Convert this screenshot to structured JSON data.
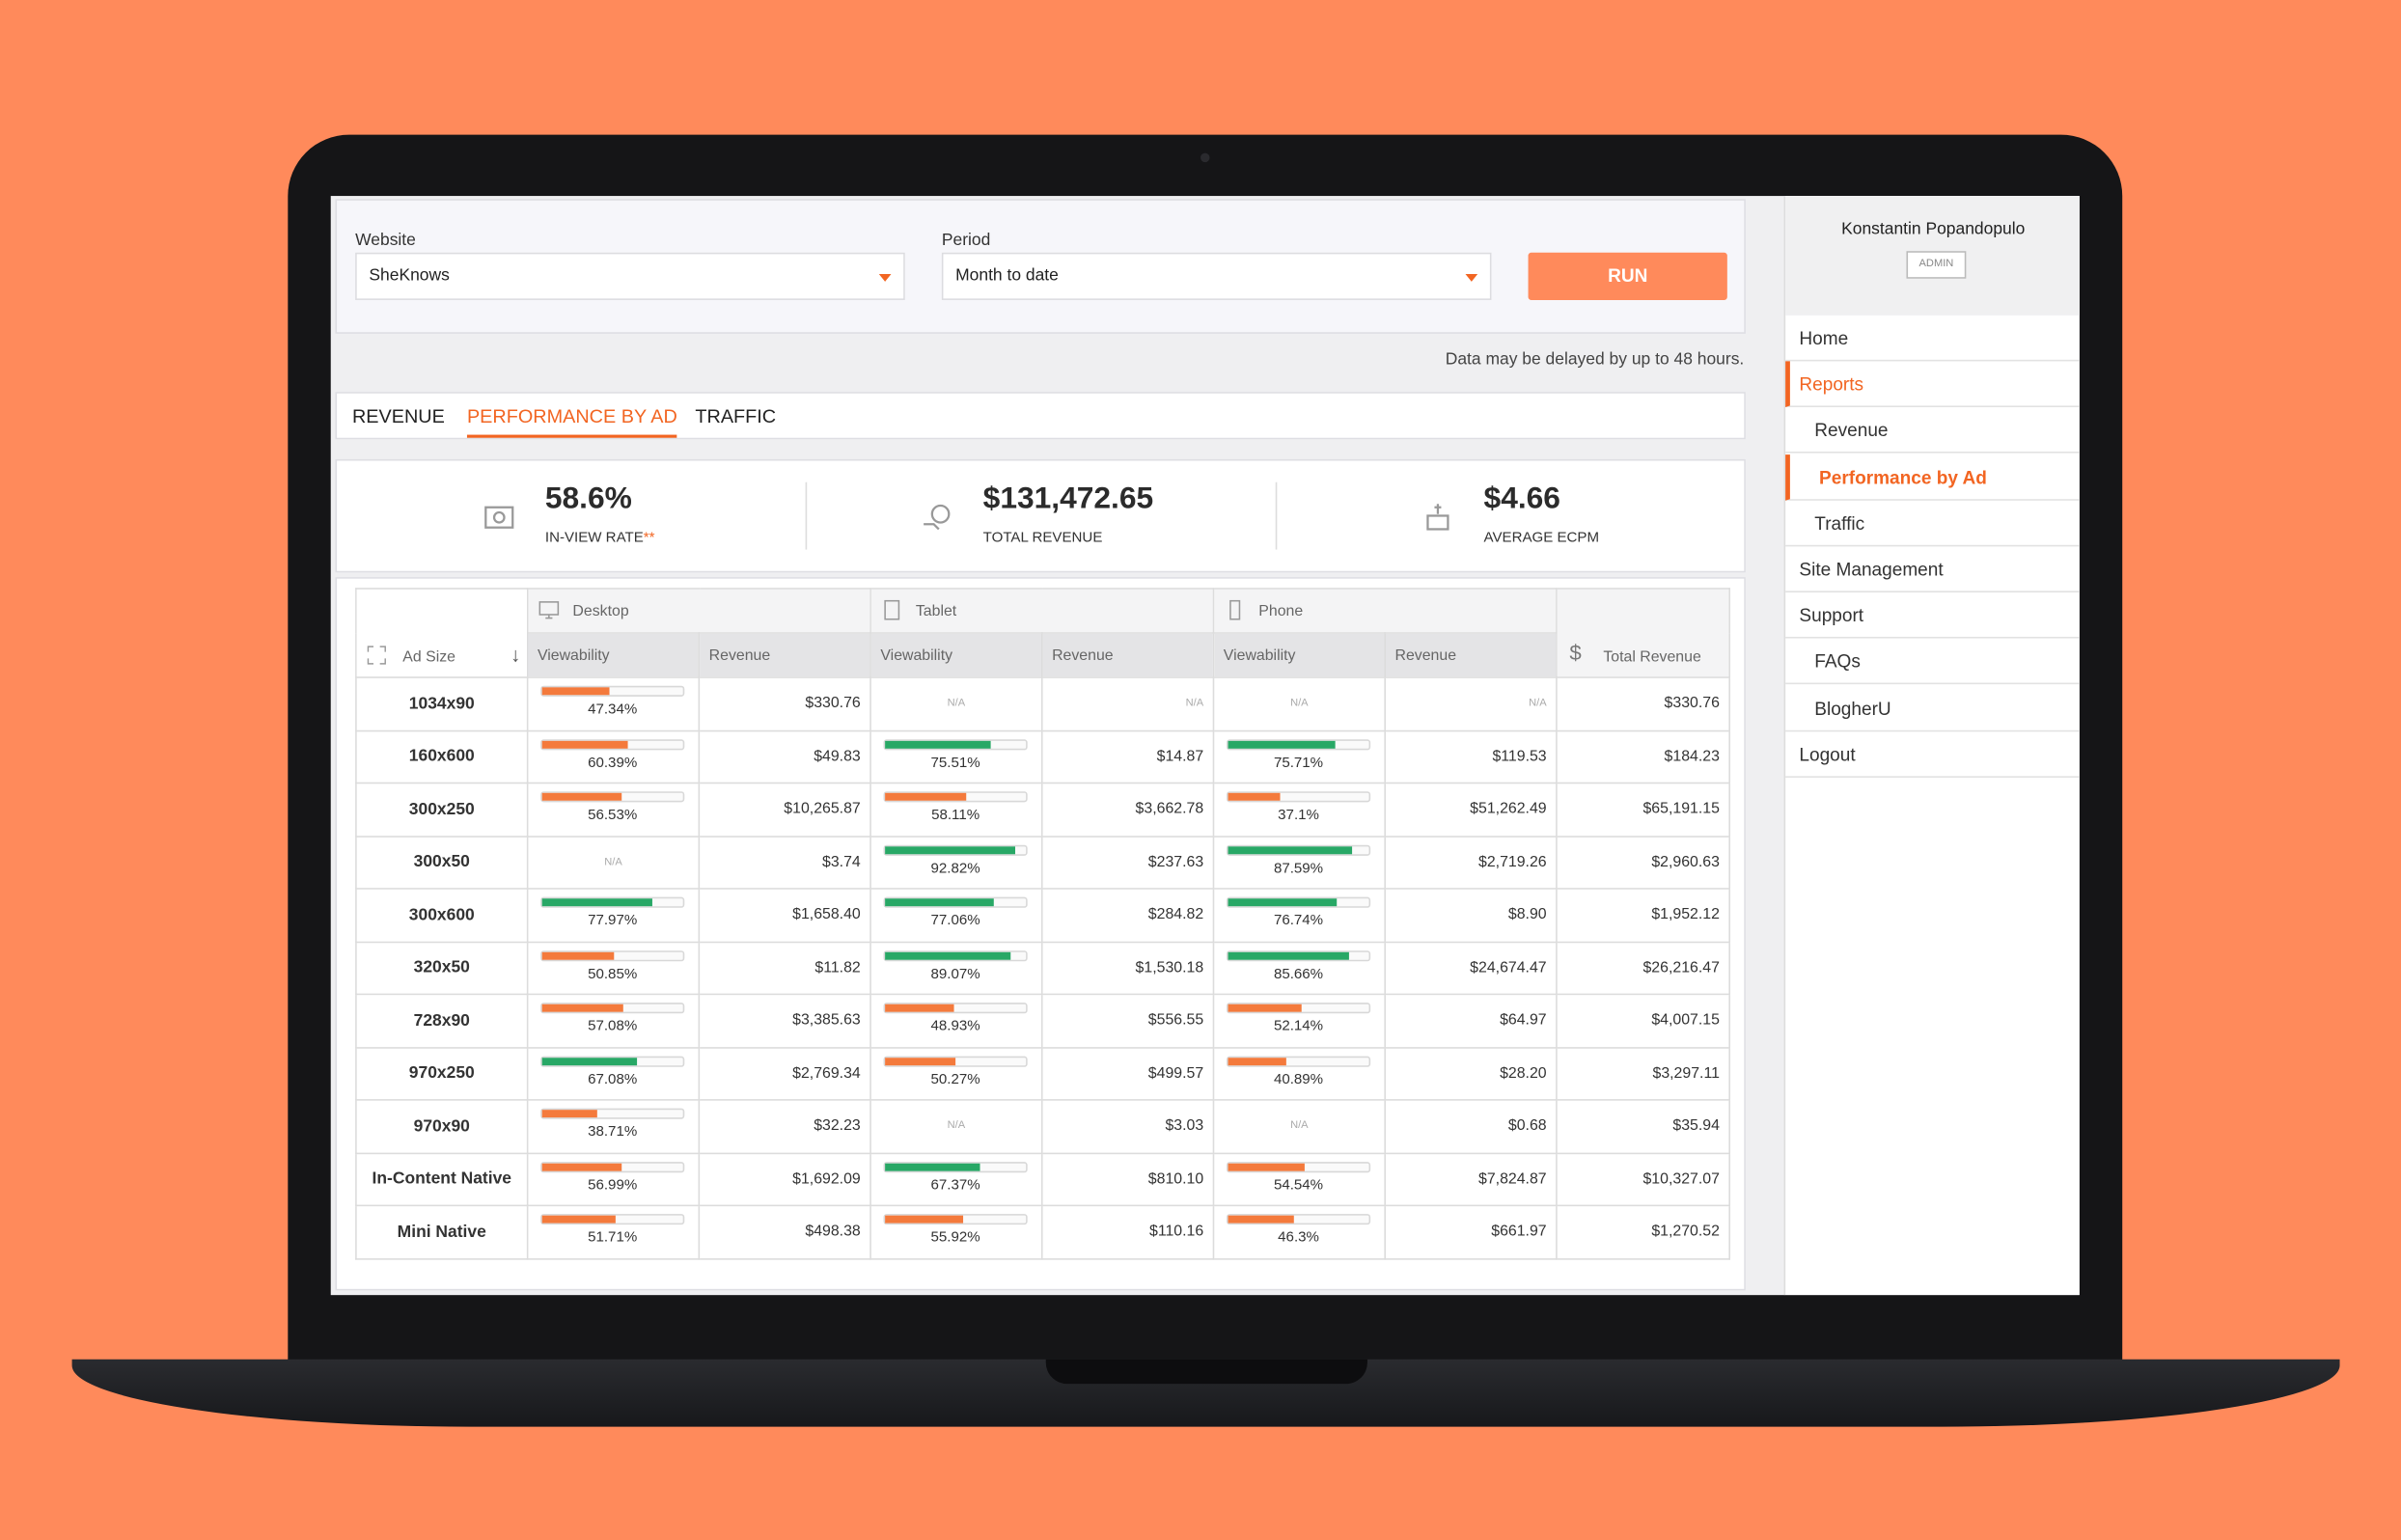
{
  "filters": {
    "website_label": "Website",
    "website": "SheKnows",
    "period_label": "Period",
    "period": "Month to date",
    "button": "RUN"
  },
  "notice": "Data may be delayed by up to 48 hours.",
  "tabs": [
    "REVENUE",
    "PERFORMANCE BY AD",
    "TRAFFIC"
  ],
  "active_tab": 1,
  "kpis": [
    {
      "value": "58.6%",
      "label": "IN-VIEW RATE",
      "note": "**"
    },
    {
      "value": "$131,472.65",
      "label": "TOTAL REVENUE"
    },
    {
      "value": "$4.66",
      "label": "AVERAGE ECPM"
    }
  ],
  "table": {
    "groups": [
      "Desktop",
      "Tablet",
      "Phone"
    ],
    "columns": {
      "size": "Ad Size",
      "viewability": "Viewability",
      "revenue": "Revenue",
      "total": "Total Revenue"
    },
    "rows": [
      [
        "1034x90",
        {
          "value": 47.34,
          "label": "47.34%",
          "color": "#f47a3c"
        },
        "$330.76",
        "N/A",
        "N/A",
        "N/A",
        "N/A",
        "$330.76"
      ],
      [
        "160x600",
        {
          "value": 60.39,
          "label": "60.39%",
          "color": "#f47a3c"
        },
        "$49.83",
        {
          "value": 75.51,
          "label": "75.51%",
          "color": "#28a866"
        },
        "$14.87",
        {
          "value": 75.71,
          "label": "75.71%",
          "color": "#28a866"
        },
        "$119.53",
        "$184.23"
      ],
      [
        "300x250",
        {
          "value": 56.53,
          "label": "56.53%",
          "color": "#f47a3c"
        },
        "$10,265.87",
        {
          "value": 58.11,
          "label": "58.11%",
          "color": "#f47a3c"
        },
        "$3,662.78",
        {
          "value": 37.1,
          "label": "37.1%",
          "color": "#f47a3c"
        },
        "$51,262.49",
        "$65,191.15"
      ],
      [
        "300x50",
        "N/A",
        "$3.74",
        {
          "value": 92.82,
          "label": "92.82%",
          "color": "#28a866"
        },
        "$237.63",
        {
          "value": 87.59,
          "label": "87.59%",
          "color": "#28a866"
        },
        "$2,719.26",
        "$2,960.63"
      ],
      [
        "300x600",
        {
          "value": 77.97,
          "label": "77.97%",
          "color": "#28a866"
        },
        "$1,658.40",
        {
          "value": 77.06,
          "label": "77.06%",
          "color": "#28a866"
        },
        "$284.82",
        {
          "value": 76.74,
          "label": "76.74%",
          "color": "#28a866"
        },
        "$8.90",
        "$1,952.12"
      ],
      [
        "320x50",
        {
          "value": 50.85,
          "label": "50.85%",
          "color": "#f47a3c"
        },
        "$11.82",
        {
          "value": 89.07,
          "label": "89.07%",
          "color": "#28a866"
        },
        "$1,530.18",
        {
          "value": 85.66,
          "label": "85.66%",
          "color": "#28a866"
        },
        "$24,674.47",
        "$26,216.47"
      ],
      [
        "728x90",
        {
          "value": 57.08,
          "label": "57.08%",
          "color": "#f47a3c"
        },
        "$3,385.63",
        {
          "value": 48.93,
          "label": "48.93%",
          "color": "#f47a3c"
        },
        "$556.55",
        {
          "value": 52.14,
          "label": "52.14%",
          "color": "#f47a3c"
        },
        "$64.97",
        "$4,007.15"
      ],
      [
        "970x250",
        {
          "value": 67.08,
          "label": "67.08%",
          "color": "#28a866"
        },
        "$2,769.34",
        {
          "value": 50.27,
          "label": "50.27%",
          "color": "#f47a3c"
        },
        "$499.57",
        {
          "value": 40.89,
          "label": "40.89%",
          "color": "#f47a3c"
        },
        "$28.20",
        "$3,297.11"
      ],
      [
        "970x90",
        {
          "value": 38.71,
          "label": "38.71%",
          "color": "#f47a3c"
        },
        "$32.23",
        "N/A",
        "$3.03",
        "N/A",
        "$0.68",
        "$35.94"
      ],
      [
        "In-Content Native",
        {
          "value": 56.99,
          "label": "56.99%",
          "color": "#f47a3c"
        },
        "$1,692.09",
        {
          "value": 67.37,
          "label": "67.37%",
          "color": "#28a866"
        },
        "$810.10",
        {
          "value": 54.54,
          "label": "54.54%",
          "color": "#f47a3c"
        },
        "$7,824.87",
        "$10,327.07"
      ],
      [
        "Mini Native",
        {
          "value": 51.71,
          "label": "51.71%",
          "color": "#f47a3c"
        },
        "$498.38",
        {
          "value": 55.92,
          "label": "55.92%",
          "color": "#f47a3c"
        },
        "$110.16",
        {
          "value": 46.3,
          "label": "46.3%",
          "color": "#f47a3c"
        },
        "$661.97",
        "$1,270.52"
      ]
    ]
  },
  "sidebar": {
    "user": "Konstantin Popandopulo",
    "role": "ADMIN",
    "nav": [
      {
        "label": "Home",
        "level": 0
      },
      {
        "label": "Reports",
        "level": 0,
        "active": true
      },
      {
        "label": "Revenue",
        "level": 1
      },
      {
        "label": "Performance by Ad",
        "level": 1,
        "active": true
      },
      {
        "label": "Traffic",
        "level": 1
      },
      {
        "label": "Site Management",
        "level": 0
      },
      {
        "label": "Support",
        "level": 0
      },
      {
        "label": "FAQs",
        "level": 1
      },
      {
        "label": "BlogherU",
        "level": 1
      },
      {
        "label": "Logout",
        "level": 0
      }
    ]
  }
}
